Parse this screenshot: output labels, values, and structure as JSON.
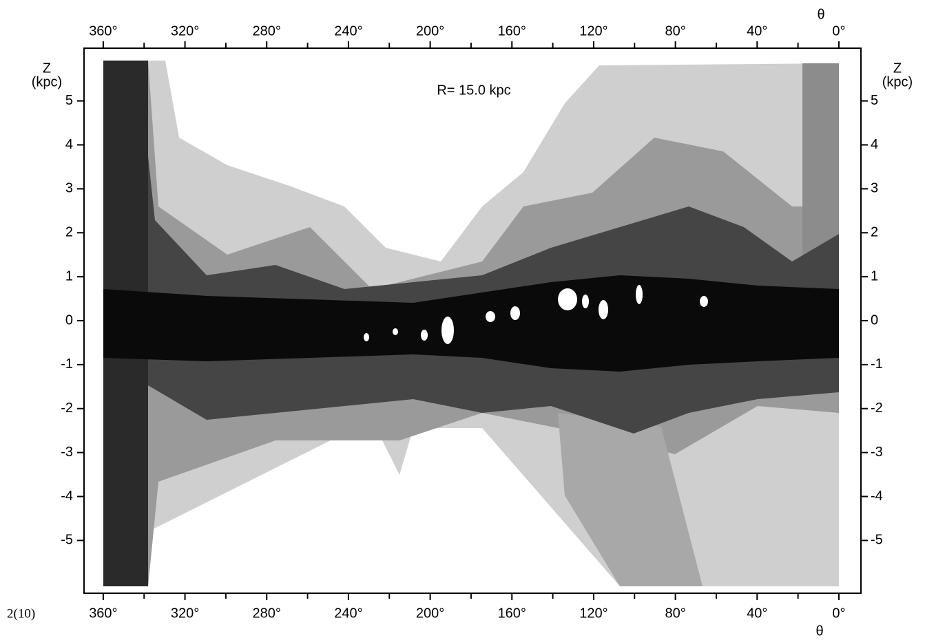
{
  "chart_data": {
    "type": "map",
    "annotation": "R= 15.0 kpc",
    "page_label": "2(10)",
    "x_label": "θ",
    "y_label_line1": "Z",
    "y_label_line2": "(kpc)",
    "xlim": [
      369.4,
      -10.8
    ],
    "ylim": [
      -6.2,
      6.2
    ],
    "xticks": [
      {
        "value": 360,
        "label": "360°"
      },
      {
        "value": 320,
        "label": "320°"
      },
      {
        "value": 280,
        "label": "280°"
      },
      {
        "value": 240,
        "label": "240°"
      },
      {
        "value": 200,
        "label": "200°"
      },
      {
        "value": 160,
        "label": "160°"
      },
      {
        "value": 120,
        "label": "120°"
      },
      {
        "value": 80,
        "label": "80°"
      },
      {
        "value": 40,
        "label": "40°"
      },
      {
        "value": 0,
        "label": "0°"
      }
    ],
    "xminorticks": [
      340,
      300,
      260,
      220,
      180,
      140,
      100,
      60,
      20
    ],
    "yticks": [
      5,
      4,
      3,
      2,
      1,
      0,
      -1,
      -2,
      -3,
      -4,
      -5
    ]
  }
}
